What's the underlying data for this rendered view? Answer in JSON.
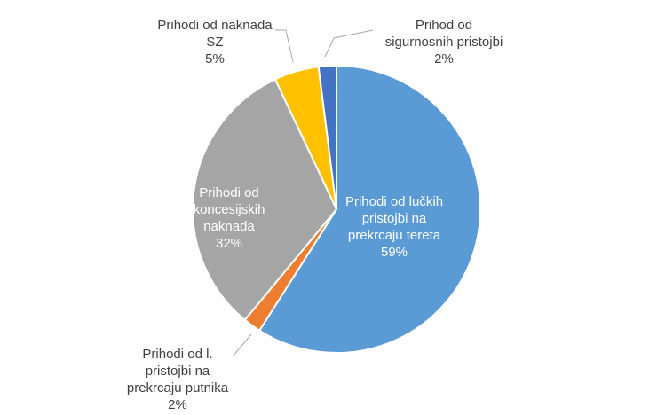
{
  "chart_data": {
    "type": "pie",
    "title": "",
    "start_angle_deg": 0,
    "direction": "clockwise",
    "slices": [
      {
        "label_lines": [
          "Prihodi od lučkih",
          "pristojbi na",
          "prekrcaju tereta"
        ],
        "percent_label": "59%",
        "value": 59,
        "color": "#5b9bd5",
        "label_color": "#ffffff",
        "label_position": "inside"
      },
      {
        "label_lines": [
          "Prihodi od l.",
          "pristojbi na",
          "prekrcaju putnika"
        ],
        "percent_label": "2%",
        "value": 2,
        "color": "#ed7d31",
        "label_color": "#404040",
        "label_position": "outside-bottom-left"
      },
      {
        "label_lines": [
          "Prihodi od",
          "koncesijskih",
          "naknada"
        ],
        "percent_label": "32%",
        "value": 32,
        "color": "#a5a5a5",
        "label_color": "#ffffff",
        "label_position": "inside"
      },
      {
        "label_lines": [
          "Prihodi od naknada",
          "SZ"
        ],
        "percent_label": "5%",
        "value": 5,
        "color": "#ffc000",
        "label_color": "#404040",
        "label_position": "outside-top-left"
      },
      {
        "label_lines": [
          "Prihod od",
          "sigurnosnih pristojbi"
        ],
        "percent_label": "2%",
        "value": 2,
        "color": "#4472c4",
        "label_color": "#404040",
        "label_position": "outside-top-right"
      }
    ]
  }
}
